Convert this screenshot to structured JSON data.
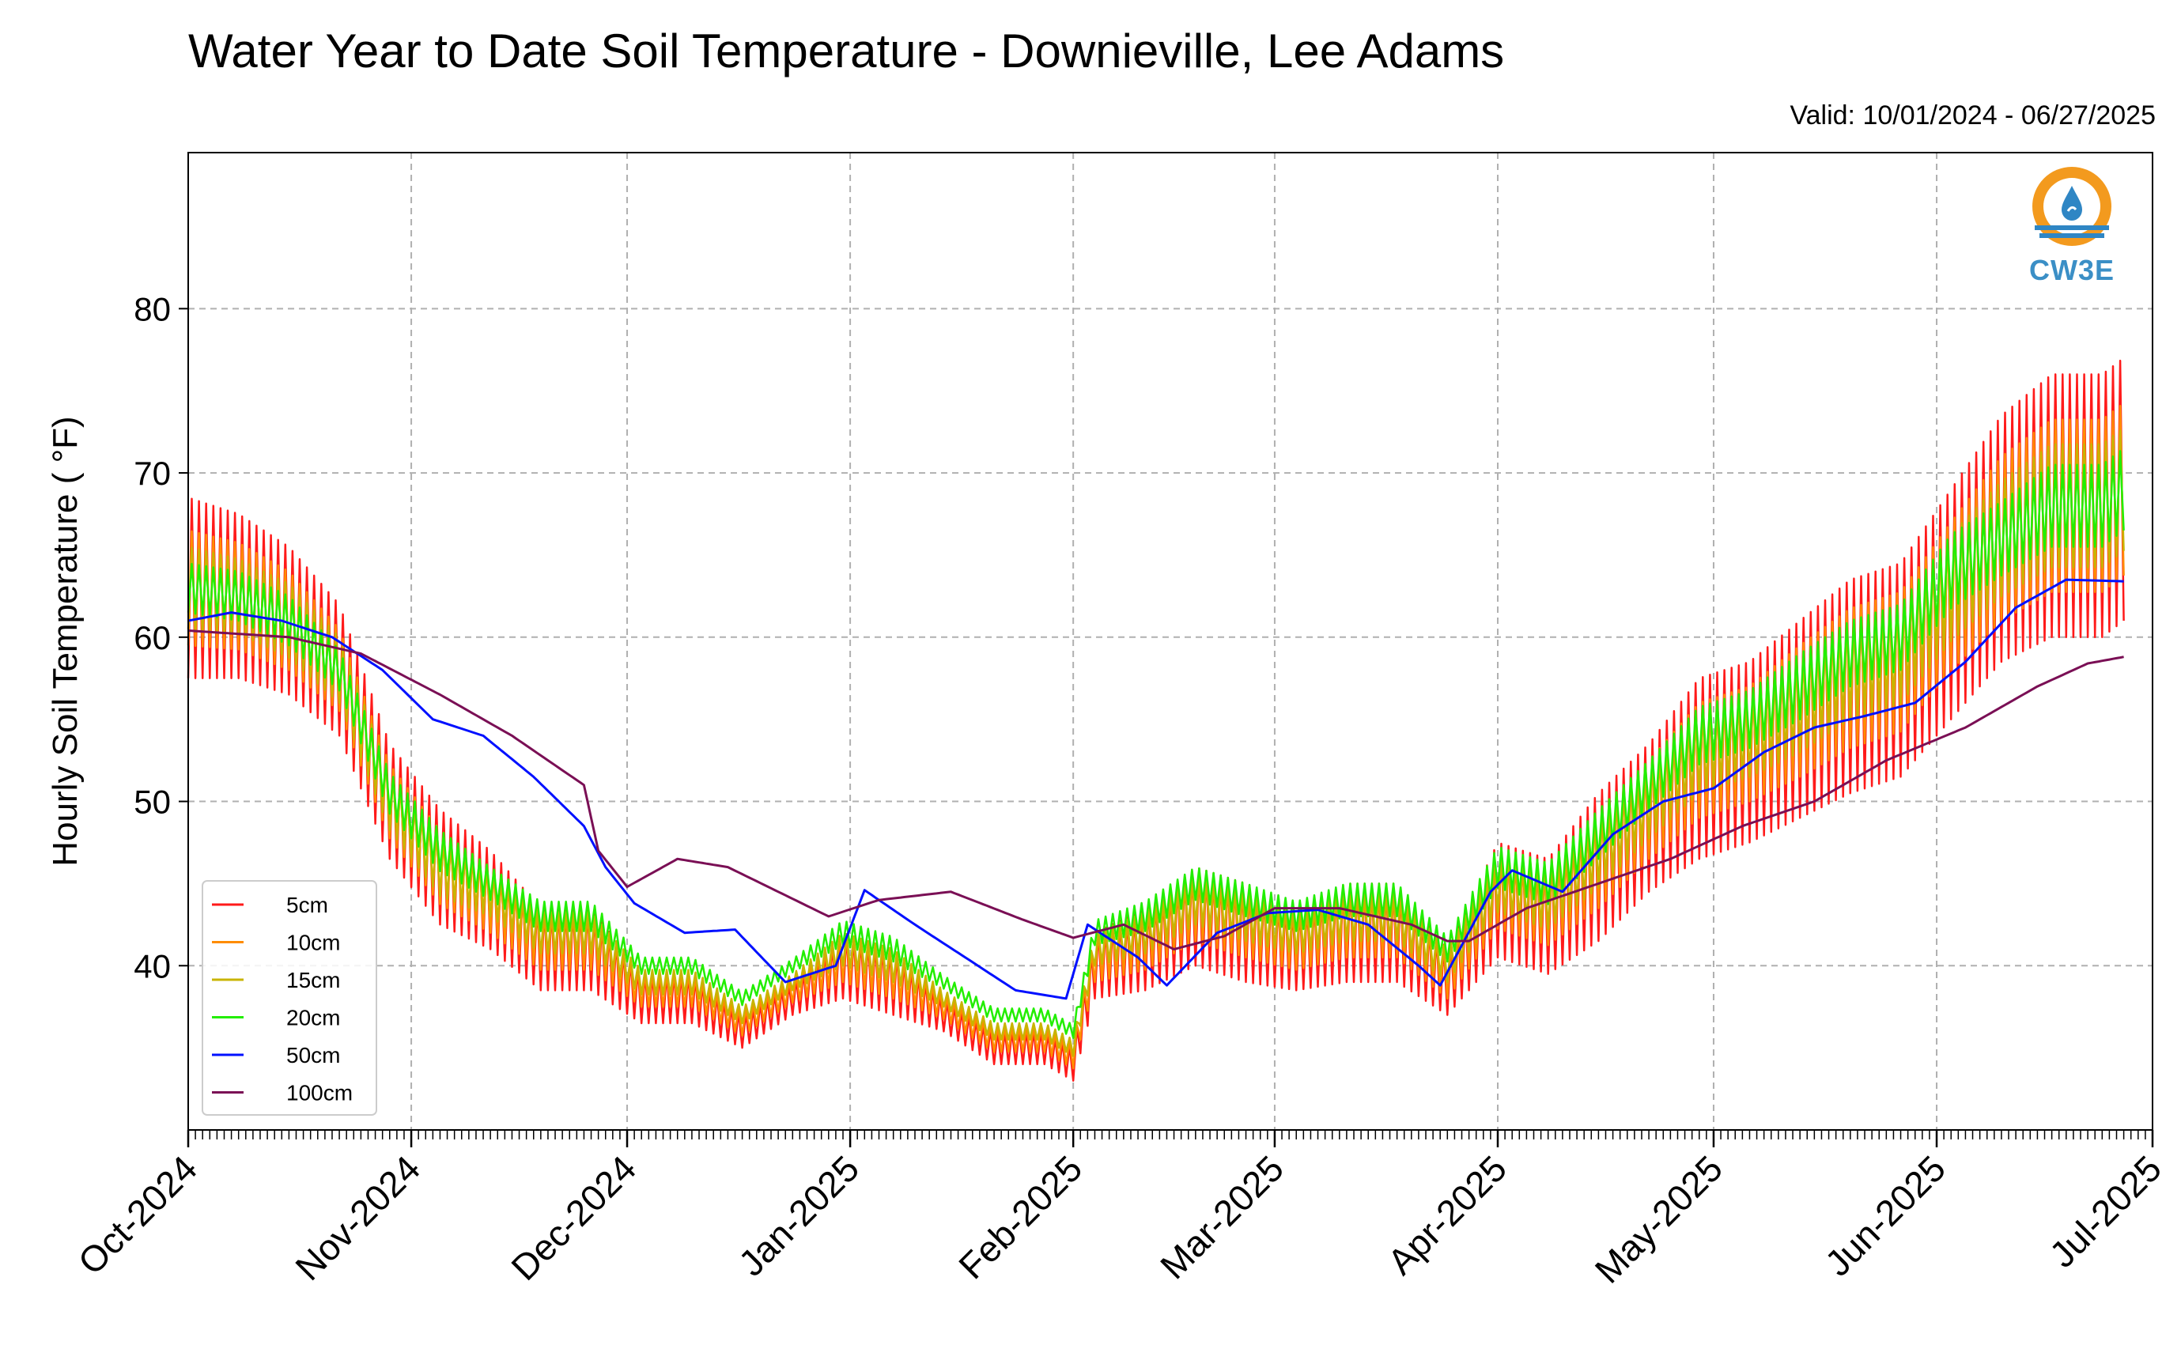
{
  "header": {
    "title": "Water Year to Date Soil Temperature - Downieville, Lee Adams",
    "valid": "Valid: 10/01/2024 - 06/27/2025"
  },
  "logo": {
    "text": "CW3E",
    "icon": "water-drop-logo-icon"
  },
  "chart_data": {
    "type": "line",
    "title": "Water Year to Date Soil Temperature - Downieville, Lee Adams",
    "subtitle": "Valid: 10/01/2024 - 06/27/2025",
    "ylabel": "Hourly Soil Temperature ( °F)",
    "xlabel": "",
    "ylim": [
      30,
      89.5
    ],
    "xlim": [
      "2024-10-01",
      "2025-07-01"
    ],
    "yticks": [
      40,
      50,
      60,
      70,
      80
    ],
    "xtick_dates": [
      "2024-10-01",
      "2024-11-01",
      "2024-12-01",
      "2025-01-01",
      "2025-02-01",
      "2025-03-01",
      "2025-04-01",
      "2025-05-01",
      "2025-06-01",
      "2025-07-01"
    ],
    "xtick_labels": [
      "Oct-2024",
      "Nov-2024",
      "Dec-2024",
      "Jan-2025",
      "Feb-2025",
      "Mar-2025",
      "Apr-2025",
      "May-2025",
      "Jun-2025",
      "Jul-2025"
    ],
    "grid": true,
    "legend_position": "lower-left",
    "series": [
      {
        "name": "5cm",
        "color": "#ff1a1a",
        "x": [
          "2024-10-01",
          "2024-10-08",
          "2024-10-15",
          "2024-10-22",
          "2024-10-29",
          "2024-11-05",
          "2024-11-12",
          "2024-11-19",
          "2024-11-26",
          "2024-12-03",
          "2024-12-10",
          "2024-12-17",
          "2024-12-24",
          "2024-12-31",
          "2025-01-07",
          "2025-01-14",
          "2025-01-21",
          "2025-01-28",
          "2025-02-01",
          "2025-02-04",
          "2025-02-11",
          "2025-02-18",
          "2025-02-25",
          "2025-03-04",
          "2025-03-11",
          "2025-03-18",
          "2025-03-25",
          "2025-04-01",
          "2025-04-08",
          "2025-04-15",
          "2025-04-22",
          "2025-04-29",
          "2025-05-06",
          "2025-05-13",
          "2025-05-20",
          "2025-05-27",
          "2025-06-03",
          "2025-06-10",
          "2025-06-17",
          "2025-06-24",
          "2025-06-27"
        ],
        "mean": [
          63,
          62.5,
          61,
          58,
          50,
          46,
          44,
          41,
          41,
          38,
          38,
          36,
          38,
          40,
          39,
          37,
          35,
          35,
          34,
          40,
          41,
          43,
          42,
          41,
          42,
          42,
          39,
          44,
          43,
          46,
          49,
          52,
          53,
          55,
          57,
          58,
          62,
          66,
          68,
          68,
          69
        ],
        "amp": [
          11,
          10,
          9,
          8,
          7,
          7,
          6,
          5,
          5,
          3,
          3,
          2,
          2,
          4,
          4,
          2,
          2,
          2,
          2,
          4,
          5,
          6,
          6,
          5,
          6,
          6,
          4,
          7,
          7,
          9,
          9,
          11,
          11,
          12,
          13,
          13,
          14,
          15,
          16,
          16,
          16
        ]
      },
      {
        "name": "10cm",
        "color": "#ff8c00",
        "x": [
          "2024-10-01",
          "2024-10-08",
          "2024-10-15",
          "2024-10-22",
          "2024-10-29",
          "2024-11-05",
          "2024-11-12",
          "2024-11-19",
          "2024-11-26",
          "2024-12-03",
          "2024-12-10",
          "2024-12-17",
          "2024-12-24",
          "2024-12-31",
          "2025-01-07",
          "2025-01-14",
          "2025-01-21",
          "2025-01-28",
          "2025-02-01",
          "2025-02-04",
          "2025-02-11",
          "2025-02-18",
          "2025-02-25",
          "2025-03-04",
          "2025-03-11",
          "2025-03-18",
          "2025-03-25",
          "2025-04-01",
          "2025-04-08",
          "2025-04-15",
          "2025-04-22",
          "2025-04-29",
          "2025-05-06",
          "2025-05-13",
          "2025-05-20",
          "2025-05-27",
          "2025-06-03",
          "2025-06-10",
          "2025-06-17",
          "2025-06-24",
          "2025-06-27"
        ],
        "mean": [
          63,
          62.5,
          61,
          58,
          50,
          46,
          44,
          41.5,
          41.5,
          38.5,
          38.5,
          36.5,
          38.5,
          40.5,
          39.5,
          37.5,
          35.5,
          35.5,
          34.5,
          40.5,
          41.5,
          43.5,
          42.5,
          41.5,
          42.5,
          42.5,
          39.5,
          44.5,
          43.5,
          46.5,
          49.5,
          52.5,
          53.5,
          55.5,
          57.5,
          58.5,
          62.5,
          66,
          68,
          68,
          69
        ],
        "amp": [
          7,
          6.5,
          6,
          5,
          4.5,
          4.5,
          4,
          3.5,
          3.5,
          2,
          2,
          1.5,
          1.5,
          3,
          3,
          1.5,
          1.5,
          1.5,
          1.5,
          3,
          3.5,
          4,
          4,
          3.5,
          4,
          4,
          3,
          4.5,
          4.5,
          6,
          6,
          7,
          7,
          8,
          8.5,
          8.5,
          9,
          10,
          10.5,
          10.5,
          10.5
        ]
      },
      {
        "name": "15cm",
        "color": "#c8b400",
        "x": [
          "2024-10-01",
          "2024-10-08",
          "2024-10-15",
          "2024-10-22",
          "2024-10-29",
          "2024-11-05",
          "2024-11-12",
          "2024-11-19",
          "2024-11-26",
          "2024-12-03",
          "2024-12-10",
          "2024-12-17",
          "2024-12-24",
          "2024-12-31",
          "2025-01-07",
          "2025-01-14",
          "2025-01-21",
          "2025-01-28",
          "2025-02-01",
          "2025-02-04",
          "2025-02-11",
          "2025-02-18",
          "2025-02-25",
          "2025-03-04",
          "2025-03-11",
          "2025-03-18",
          "2025-03-25",
          "2025-04-01",
          "2025-04-08",
          "2025-04-15",
          "2025-04-22",
          "2025-04-29",
          "2025-05-06",
          "2025-05-13",
          "2025-05-20",
          "2025-05-27",
          "2025-06-03",
          "2025-06-10",
          "2025-06-17",
          "2025-06-24",
          "2025-06-27"
        ],
        "mean": [
          63,
          62.5,
          61,
          58,
          50,
          46,
          44.5,
          42,
          42,
          39,
          39,
          37,
          39,
          41,
          40,
          38,
          36,
          36,
          35,
          41,
          42,
          44,
          43,
          42,
          43,
          43,
          40,
          45,
          44,
          47,
          50,
          53,
          54,
          56,
          58,
          59,
          63,
          66,
          68,
          68,
          69
        ],
        "amp": [
          5,
          4.5,
          4.5,
          4,
          3.5,
          3.5,
          3,
          2.5,
          2.5,
          1.5,
          1.5,
          1,
          1,
          2,
          2,
          1,
          1,
          1,
          1,
          2,
          2.5,
          3,
          3,
          2.5,
          3,
          3,
          2,
          3.5,
          3.5,
          4.5,
          4.5,
          5,
          5,
          6,
          6,
          6,
          6.5,
          7,
          7.5,
          7.5,
          7.5
        ]
      },
      {
        "name": "20cm",
        "color": "#22ee00",
        "x": [
          "2024-10-01",
          "2024-10-08",
          "2024-10-15",
          "2024-10-22",
          "2024-10-29",
          "2024-11-05",
          "2024-11-12",
          "2024-11-19",
          "2024-11-26",
          "2024-12-03",
          "2024-12-10",
          "2024-12-17",
          "2024-12-24",
          "2024-12-31",
          "2025-01-07",
          "2025-01-14",
          "2025-01-21",
          "2025-01-28",
          "2025-02-01",
          "2025-02-04",
          "2025-02-11",
          "2025-02-18",
          "2025-02-25",
          "2025-03-04",
          "2025-03-11",
          "2025-03-18",
          "2025-03-25",
          "2025-04-01",
          "2025-04-08",
          "2025-04-15",
          "2025-04-22",
          "2025-04-29",
          "2025-05-06",
          "2025-05-13",
          "2025-05-20",
          "2025-05-27",
          "2025-06-03",
          "2025-06-10",
          "2025-06-17",
          "2025-06-24",
          "2025-06-27"
        ],
        "mean": [
          63,
          62.5,
          61,
          58,
          50.5,
          47,
          45,
          43,
          43,
          40,
          40,
          38,
          40,
          42,
          41,
          39,
          37,
          37,
          36,
          42,
          43,
          45,
          44,
          43,
          44,
          44,
          41,
          46,
          45,
          48,
          51,
          54,
          55,
          57,
          59,
          60,
          64,
          66,
          68,
          68,
          69
        ],
        "amp": [
          3,
          3,
          3,
          2.5,
          2.5,
          2.5,
          2,
          1.8,
          1.8,
          1,
          1,
          0.8,
          0.8,
          1.5,
          1.5,
          0.8,
          0.8,
          0.8,
          0.8,
          1.5,
          1.8,
          2,
          2,
          1.8,
          2,
          2,
          1.5,
          2.5,
          2.5,
          3,
          3,
          3.5,
          3.5,
          4,
          4,
          4,
          4.5,
          4.5,
          5,
          5,
          5
        ]
      },
      {
        "name": "50cm",
        "color": "#0010ff",
        "x": [
          "2024-10-01",
          "2024-10-07",
          "2024-10-14",
          "2024-10-21",
          "2024-10-28",
          "2024-11-04",
          "2024-11-11",
          "2024-11-18",
          "2024-11-25",
          "2024-11-28",
          "2024-12-02",
          "2024-12-09",
          "2024-12-16",
          "2024-12-23",
          "2024-12-30",
          "2025-01-03",
          "2025-01-10",
          "2025-01-17",
          "2025-01-24",
          "2025-01-31",
          "2025-02-03",
          "2025-02-10",
          "2025-02-14",
          "2025-02-21",
          "2025-02-28",
          "2025-03-07",
          "2025-03-14",
          "2025-03-21",
          "2025-03-24",
          "2025-03-31",
          "2025-04-03",
          "2025-04-10",
          "2025-04-17",
          "2025-04-24",
          "2025-05-01",
          "2025-05-08",
          "2025-05-15",
          "2025-05-22",
          "2025-05-29",
          "2025-06-05",
          "2025-06-12",
          "2025-06-19",
          "2025-06-27"
        ],
        "y": [
          61,
          61.5,
          61,
          60,
          58,
          55,
          54,
          51.5,
          48.5,
          46,
          43.8,
          42,
          42.2,
          39,
          40,
          44.6,
          42.5,
          40.5,
          38.5,
          38,
          42.5,
          40.5,
          38.8,
          42,
          43.2,
          43.4,
          42.5,
          40,
          38.8,
          44.5,
          45.8,
          44.5,
          48,
          50,
          50.8,
          53,
          54.5,
          55.2,
          56,
          58.5,
          61.8,
          63.5,
          63.4
        ]
      },
      {
        "name": "100cm",
        "color": "#7a0f55",
        "x": [
          "2024-10-01",
          "2024-10-15",
          "2024-10-25",
          "2024-11-05",
          "2024-11-15",
          "2024-11-25",
          "2024-11-27",
          "2024-12-01",
          "2024-12-08",
          "2024-12-15",
          "2024-12-22",
          "2024-12-29",
          "2025-01-05",
          "2025-01-15",
          "2025-01-25",
          "2025-02-01",
          "2025-02-08",
          "2025-02-15",
          "2025-02-22",
          "2025-03-01",
          "2025-03-10",
          "2025-03-20",
          "2025-03-25",
          "2025-03-28",
          "2025-04-05",
          "2025-04-15",
          "2025-04-25",
          "2025-05-05",
          "2025-05-15",
          "2025-05-25",
          "2025-06-05",
          "2025-06-15",
          "2025-06-22",
          "2025-06-27"
        ],
        "y": [
          60.4,
          60,
          59,
          56.5,
          54,
          51,
          47,
          44.8,
          46.5,
          46,
          44.5,
          43,
          44,
          44.5,
          42.8,
          41.7,
          42.5,
          41,
          41.8,
          43.5,
          43.5,
          42.5,
          41.5,
          41.5,
          43.5,
          45,
          46.5,
          48.5,
          50,
          52.5,
          54.5,
          57,
          58.4,
          58.8
        ]
      }
    ]
  }
}
